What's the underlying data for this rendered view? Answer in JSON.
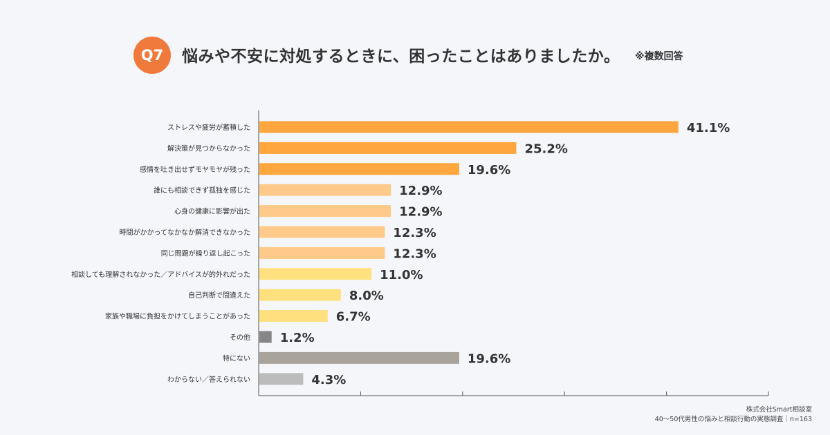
{
  "badge": "Q7",
  "title": "悩みや不安に対処するときに、困ったことはありましたか。",
  "title_note": "※複数回答",
  "colors": {
    "badge": "#f07a3c",
    "orange": "#ffa73e",
    "light_orange": "#ffc98a",
    "yellow": "#ffe07e",
    "gray_dark": "#868686",
    "gray": "#a8a49c",
    "gray_light": "#bcbcbc",
    "axis": "#555555"
  },
  "chart_data": {
    "type": "bar",
    "orientation": "horizontal",
    "categories": [
      "ストレスや疲労が蓄積した",
      "解決策が見つからなかった",
      "感情を吐き出せずモヤモヤが残った",
      "誰にも相談できず孤独を感じた",
      "心身の健康に影響が出た",
      "時間がかかってなかなか解消できなかった",
      "同じ問題が繰り返し起こった",
      "相談しても理解されなかった／アドバイスが的外れだった",
      "自己判断で間違えた",
      "家族や職場に負担をかけてしまうことがあった",
      "その他",
      "特にない",
      "わからない／答えられない"
    ],
    "values": [
      41.1,
      25.2,
      19.6,
      12.9,
      12.9,
      12.3,
      12.3,
      11.0,
      8.0,
      6.7,
      1.2,
      19.6,
      4.3
    ],
    "value_labels": [
      "41.1%",
      "25.2%",
      "19.6%",
      "12.9%",
      "12.9%",
      "12.3%",
      "12.3%",
      "11.0%",
      "8.0%",
      "6.7%",
      "1.2%",
      "19.6%",
      "4.3%"
    ],
    "bar_colors": [
      "#ffa73e",
      "#ffa73e",
      "#ffa73e",
      "#ffc98a",
      "#ffc98a",
      "#ffc98a",
      "#ffc98a",
      "#ffe07e",
      "#ffe07e",
      "#ffe07e",
      "#868686",
      "#a8a49c",
      "#bcbcbc"
    ],
    "xlim": [
      0,
      50
    ],
    "xticks": [
      0,
      10,
      20,
      30,
      40,
      50
    ],
    "grid": false,
    "legend": "none"
  },
  "footer": {
    "line1": "株式会社Smart相談室",
    "line2": "40〜50代男性の悩みと相談行動の実態調査｜n=163"
  }
}
